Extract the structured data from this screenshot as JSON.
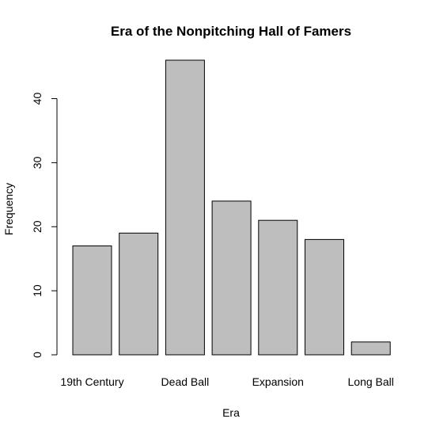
{
  "chart_data": {
    "type": "bar",
    "title": "Era of the Nonpitching Hall of Famers",
    "xlabel": "Era",
    "ylabel": "Frequency",
    "categories": [
      "19th Century",
      "",
      "Dead Ball",
      "",
      "Expansion",
      "",
      "Long Ball"
    ],
    "values": [
      17,
      19,
      46,
      24,
      21,
      18,
      2
    ],
    "ylim": [
      0,
      46
    ],
    "yticks": [
      0,
      10,
      20,
      30,
      40
    ],
    "bar_color": "#bebebe",
    "grid": false,
    "legend": "none"
  }
}
